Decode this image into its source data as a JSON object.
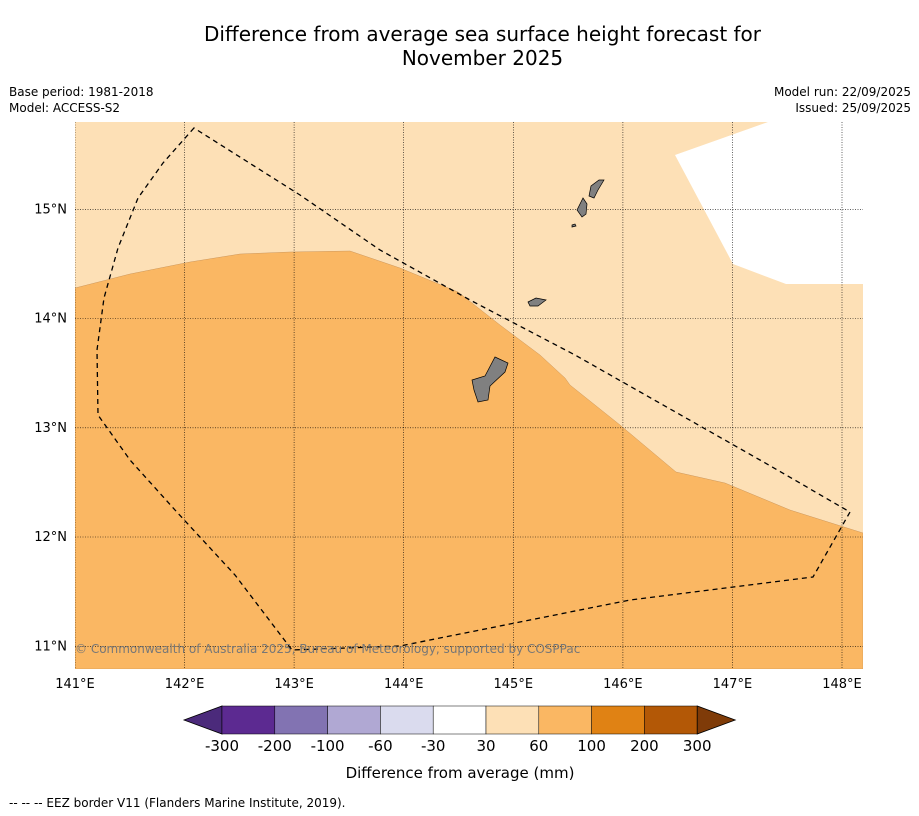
{
  "title_line1": "Difference from average sea surface height forecast for",
  "title_line2": "November 2025",
  "meta": {
    "base_period": "Base period: 1981-2018",
    "model": "Model: ACCESS-S2",
    "model_run": "Model run: 22/09/2025",
    "issued": "Issued: 25/09/2025"
  },
  "map": {
    "lon_labels": [
      "141°E",
      "142°E",
      "143°E",
      "144°E",
      "145°E",
      "146°E",
      "147°E",
      "148°E"
    ],
    "lat_labels": [
      "15°N",
      "14°N",
      "13°N",
      "12°N",
      "11°N"
    ],
    "copyright": "© Commonwealth of Australia 2025, Bureau of Meteorology, supported by COSPPac",
    "colors": {
      "band_30_60": "#fde0b6",
      "band_60_100": "#fab763",
      "land": "#808080",
      "no_data": "#ffffff"
    }
  },
  "colorbar": {
    "ticks": [
      "-300",
      "-200",
      "-100",
      "-60",
      "-30",
      "30",
      "60",
      "100",
      "200",
      "300"
    ],
    "colors": [
      "#4b2a7b",
      "#5c2a91",
      "#8273b2",
      "#b0a8d3",
      "#dadbee",
      "#ffffff",
      "#fde0b6",
      "#fab763",
      "#e08214",
      "#b35806",
      "#7f3b08"
    ],
    "label": "Difference from average (mm)"
  },
  "footer": "--  --  -- EEZ border V11 (Flanders Marine Institute, 2019)."
}
